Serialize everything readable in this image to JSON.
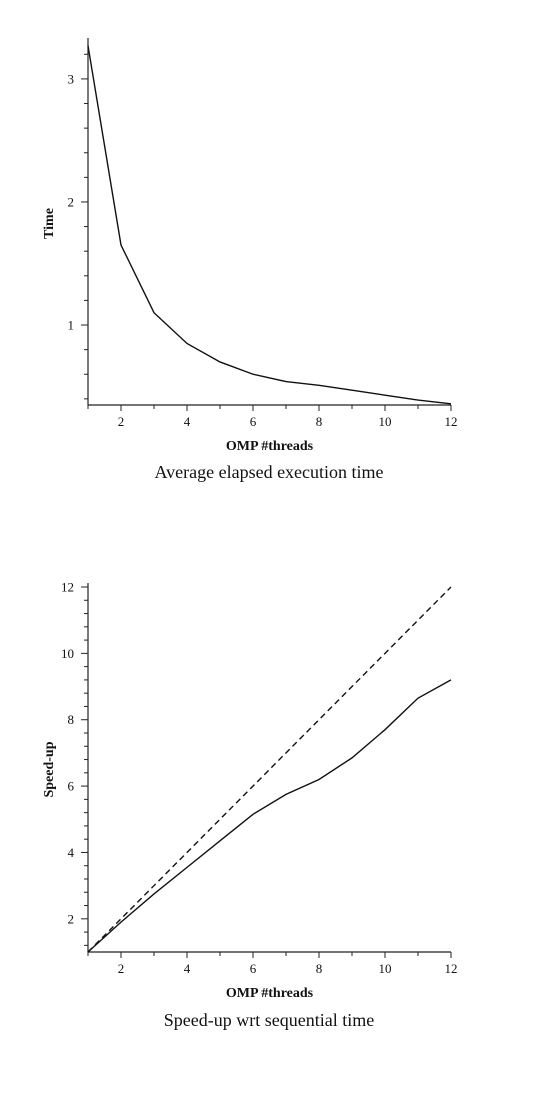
{
  "chart_data": [
    {
      "type": "line",
      "xlabel": "OMP #threads",
      "ylabel": "Time",
      "caption": "Average elapsed execution time",
      "xlim": [
        1,
        12
      ],
      "ylim": [
        0.35,
        3.3
      ],
      "xticks": [
        2,
        4,
        6,
        8,
        10,
        12
      ],
      "yticks": [
        1,
        2,
        3
      ],
      "grid": false,
      "series": [
        {
          "style": "solid",
          "x": [
            1,
            2,
            3,
            4,
            5,
            6,
            7,
            8,
            9,
            10,
            11,
            12
          ],
          "y": [
            3.27,
            1.65,
            1.1,
            0.85,
            0.7,
            0.6,
            0.54,
            0.51,
            0.47,
            0.43,
            0.39,
            0.36
          ]
        }
      ]
    },
    {
      "type": "line",
      "xlabel": "OMP #threads",
      "ylabel": "Speed-up",
      "caption": "Speed-up wrt sequential time",
      "xlim": [
        1,
        12
      ],
      "ylim": [
        1,
        12
      ],
      "xticks": [
        2,
        4,
        6,
        8,
        10,
        12
      ],
      "yticks": [
        2,
        4,
        6,
        8,
        10,
        12
      ],
      "grid": false,
      "series": [
        {
          "style": "solid",
          "x": [
            1,
            2,
            3,
            4,
            5,
            6,
            7,
            8,
            9,
            10,
            11,
            12
          ],
          "y": [
            1,
            1.9,
            2.75,
            3.55,
            4.35,
            5.15,
            5.75,
            6.2,
            6.85,
            7.7,
            8.65,
            9.2
          ]
        },
        {
          "style": "dashed",
          "x": [
            1,
            12
          ],
          "y": [
            1,
            12
          ]
        }
      ]
    }
  ]
}
